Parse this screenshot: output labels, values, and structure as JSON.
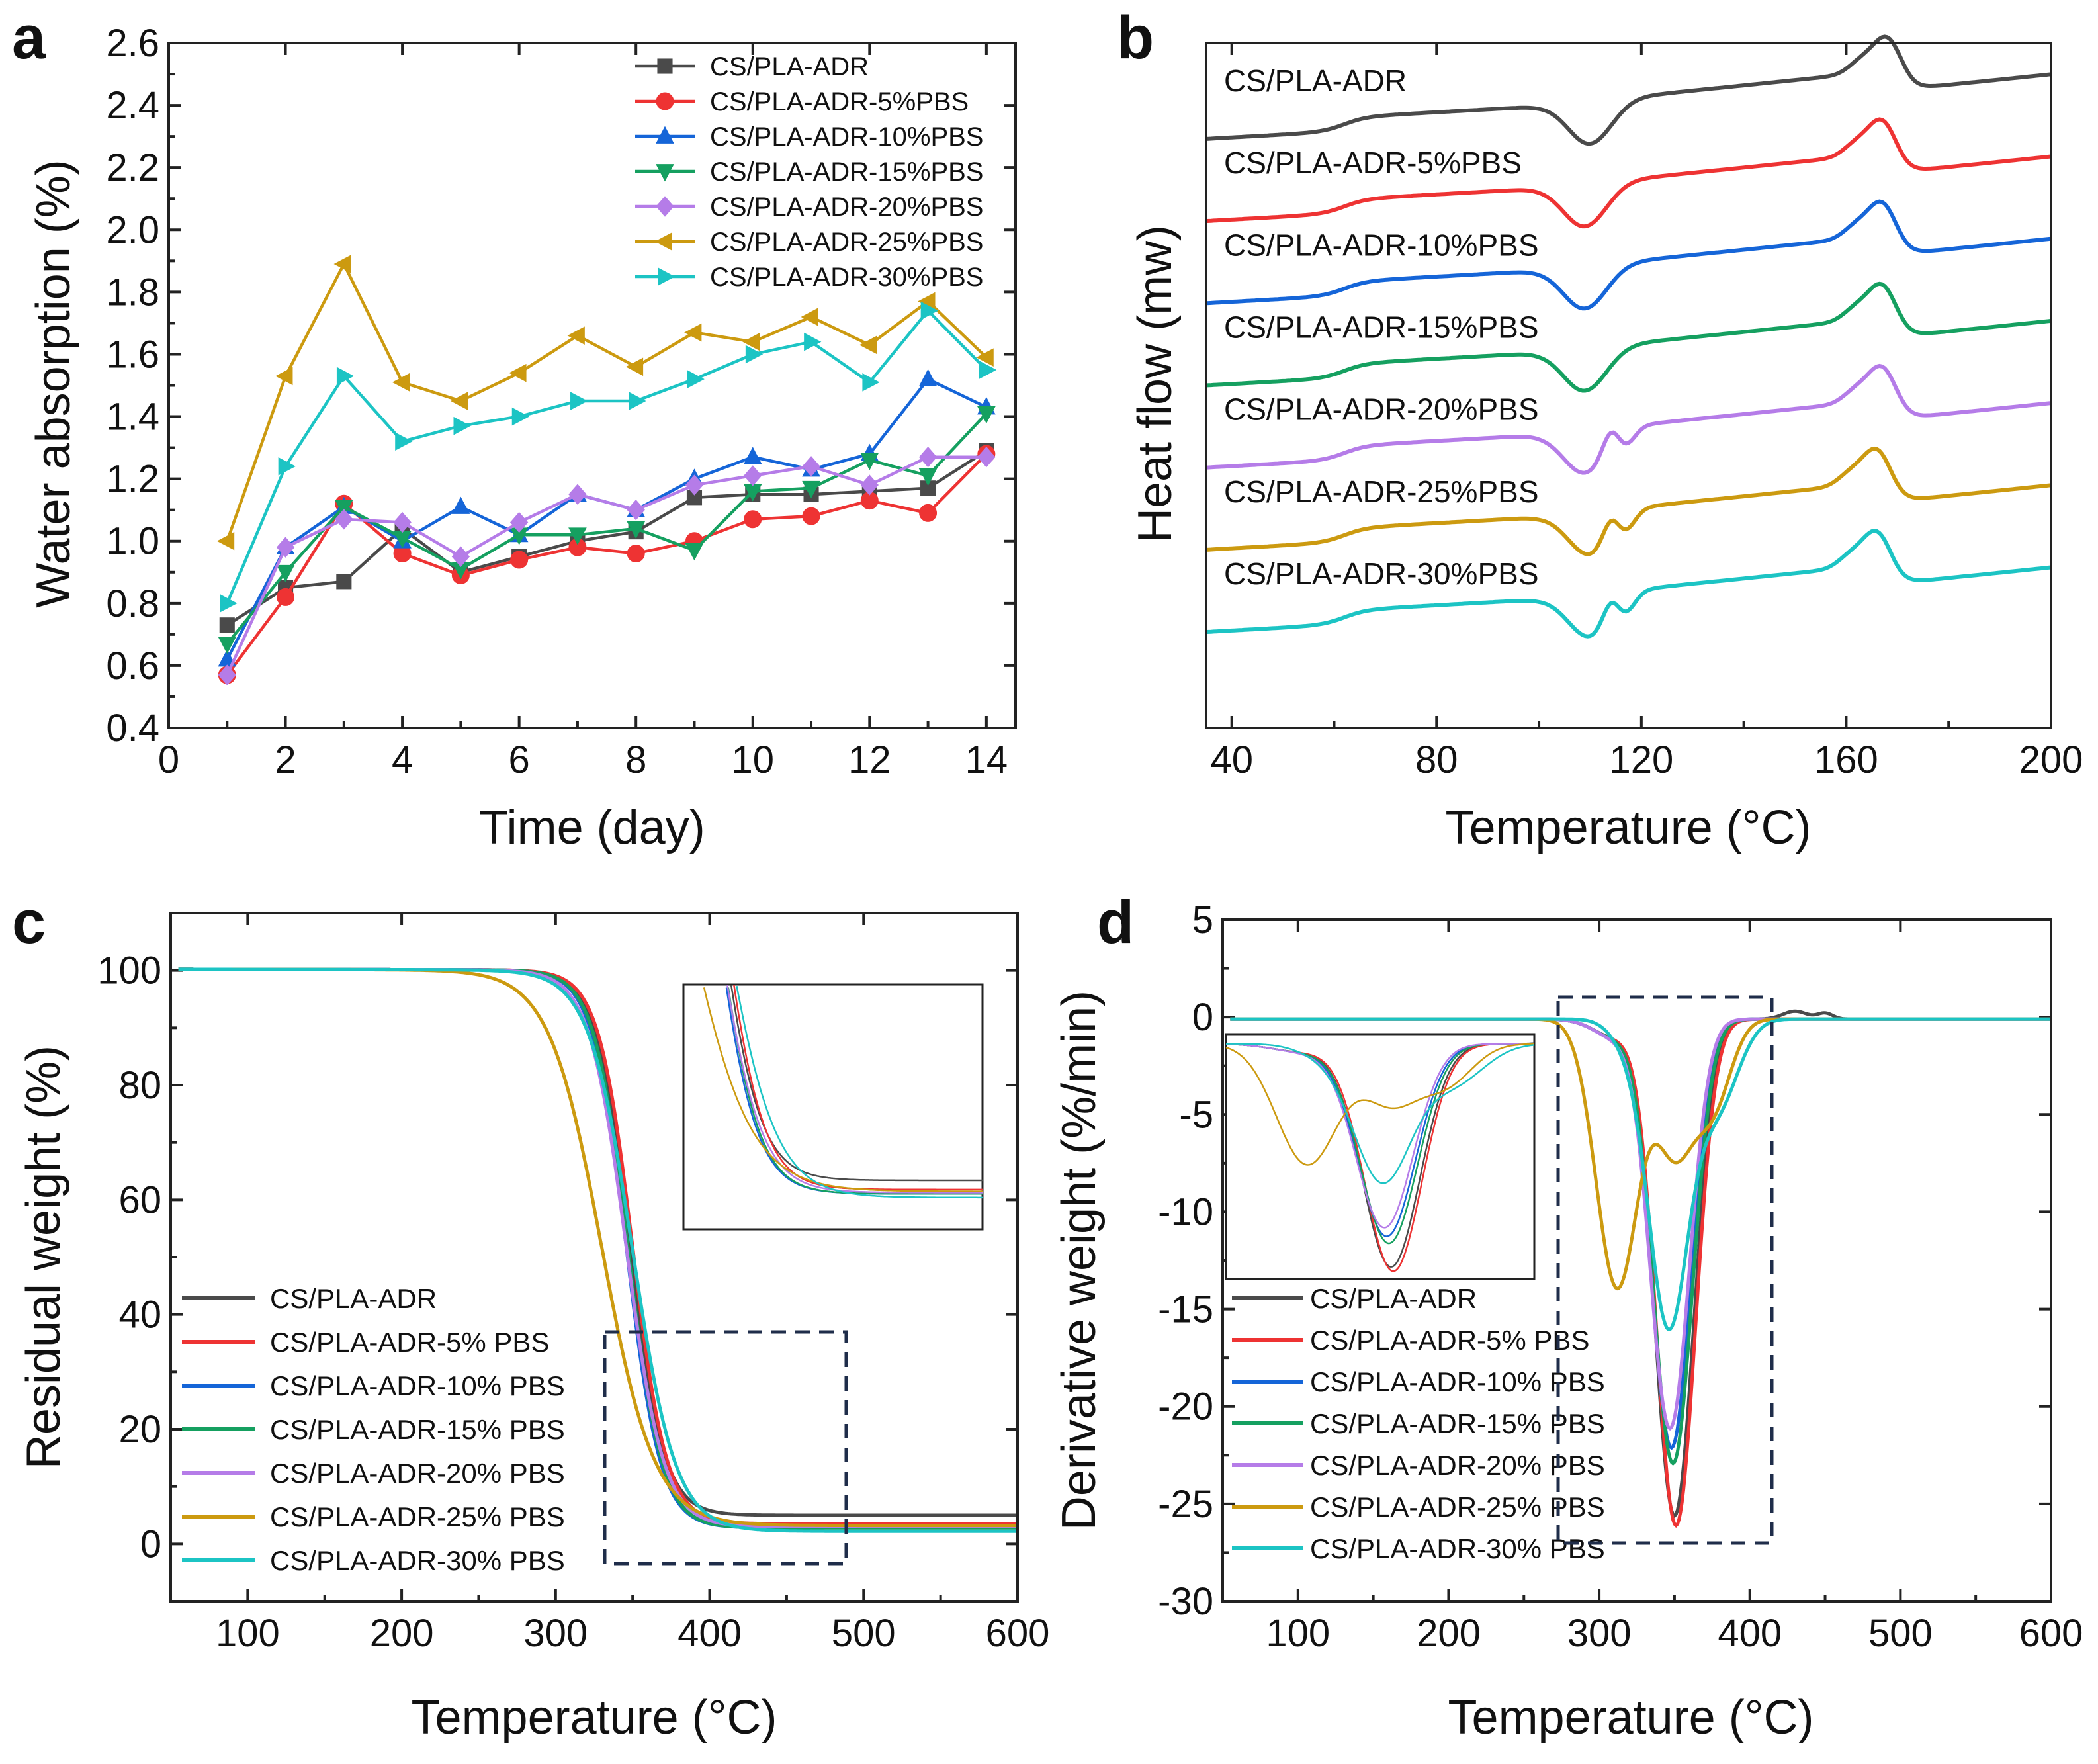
{
  "chart_data": [
    {
      "panel": "a",
      "type": "line",
      "xlabel": "Time (day)",
      "ylabel": "Water absorption (%)",
      "xlim": [
        0,
        14.5
      ],
      "ylim": [
        0.4,
        2.6
      ],
      "xticks": [
        0,
        2,
        4,
        6,
        8,
        10,
        12,
        14
      ],
      "yticks": [
        0.4,
        0.6,
        0.8,
        1.0,
        1.2,
        1.4,
        1.6,
        1.8,
        2.0,
        2.2,
        2.4,
        2.6
      ],
      "legend_position": "top-right",
      "x": [
        1,
        2,
        3,
        4,
        5,
        6,
        7,
        8,
        9,
        10,
        11,
        12,
        13,
        14
      ],
      "series": [
        {
          "name": "CS/PLA-ADR",
          "color": "#4a4a4a",
          "marker": "square",
          "values": [
            0.73,
            0.85,
            0.87,
            1.04,
            0.9,
            0.95,
            1.0,
            1.03,
            1.14,
            1.15,
            1.15,
            1.16,
            1.17,
            1.29
          ]
        },
        {
          "name": "CS/PLA-ADR-5%PBS",
          "color": "#ee3333",
          "marker": "circle",
          "values": [
            0.57,
            0.82,
            1.12,
            0.96,
            0.89,
            0.94,
            0.98,
            0.96,
            1.0,
            1.07,
            1.08,
            1.13,
            1.09,
            1.28
          ]
        },
        {
          "name": "CS/PLA-ADR-10%PBS",
          "color": "#1565d8",
          "marker": "triangle-up",
          "values": [
            0.62,
            0.98,
            1.11,
            1.0,
            1.11,
            1.02,
            1.15,
            1.1,
            1.2,
            1.27,
            1.23,
            1.28,
            1.52,
            1.43
          ]
        },
        {
          "name": "CS/PLA-ADR-15%PBS",
          "color": "#15a060",
          "marker": "triangle-down",
          "values": [
            0.67,
            0.9,
            1.11,
            1.01,
            0.91,
            1.02,
            1.02,
            1.04,
            0.97,
            1.16,
            1.17,
            1.26,
            1.21,
            1.41
          ]
        },
        {
          "name": "CS/PLA-ADR-20%PBS",
          "color": "#b57ce8",
          "marker": "diamond",
          "values": [
            0.57,
            0.98,
            1.07,
            1.06,
            0.95,
            1.06,
            1.15,
            1.1,
            1.18,
            1.21,
            1.24,
            1.18,
            1.27,
            1.27
          ]
        },
        {
          "name": "CS/PLA-ADR-25%PBS",
          "color": "#cc9a10",
          "marker": "triangle-left",
          "values": [
            1.0,
            1.53,
            1.89,
            1.51,
            1.45,
            1.54,
            1.66,
            1.56,
            1.67,
            1.64,
            1.72,
            1.63,
            1.77,
            1.59
          ]
        },
        {
          "name": "CS/PLA-ADR-30%PBS",
          "color": "#1cc4c4",
          "marker": "triangle-right",
          "values": [
            0.8,
            1.24,
            1.53,
            1.32,
            1.37,
            1.4,
            1.45,
            1.45,
            1.52,
            1.6,
            1.64,
            1.51,
            1.74,
            1.55
          ]
        }
      ]
    },
    {
      "panel": "b",
      "type": "line",
      "xlabel": "Temperature (°C)",
      "ylabel": "Heat flow (mw)",
      "xlim": [
        35,
        200
      ],
      "xticks": [
        40,
        80,
        120,
        160,
        200
      ],
      "y_axis": "offset traces, no y tick labels",
      "series": [
        {
          "name": "CS/PLA-ADR",
          "color": "#4a4a4a",
          "level": 0.86,
          "cold_cryst_peak_c": 110,
          "melt_peak_c": 168,
          "double_cold_cryst": false
        },
        {
          "name": "CS/PLA-ADR-5%PBS",
          "color": "#ee3333",
          "level": 0.74,
          "cold_cryst_peak_c": 109,
          "melt_peak_c": 167,
          "double_cold_cryst": false
        },
        {
          "name": "CS/PLA-ADR-10%PBS",
          "color": "#1565d8",
          "level": 0.62,
          "cold_cryst_peak_c": 109,
          "melt_peak_c": 167,
          "double_cold_cryst": false
        },
        {
          "name": "CS/PLA-ADR-15%PBS",
          "color": "#15a060",
          "level": 0.5,
          "cold_cryst_peak_c": 109,
          "melt_peak_c": 167,
          "double_cold_cryst": false
        },
        {
          "name": "CS/PLA-ADR-20%PBS",
          "color": "#b57ce8",
          "level": 0.38,
          "cold_cryst_peak_c": 109,
          "melt_peak_c": 167,
          "double_cold_cryst": true
        },
        {
          "name": "CS/PLA-ADR-25%PBS",
          "color": "#cc9a10",
          "level": 0.26,
          "cold_cryst_peak_c": 110,
          "melt_peak_c": 166,
          "double_cold_cryst": true
        },
        {
          "name": "CS/PLA-ADR-30%PBS",
          "color": "#1cc4c4",
          "level": 0.14,
          "cold_cryst_peak_c": 110,
          "melt_peak_c": 166,
          "double_cold_cryst": true
        }
      ]
    },
    {
      "panel": "c",
      "type": "line",
      "xlabel": "Temperature (°C)",
      "ylabel": "Residual weight (%)",
      "xlim": [
        50,
        600
      ],
      "ylim": [
        -10,
        110
      ],
      "xticks": [
        100,
        200,
        300,
        400,
        500,
        600
      ],
      "yticks": [
        0,
        20,
        40,
        60,
        80,
        100
      ],
      "legend_position": "bottom-left",
      "inset": "zoom of dashed region (about 330-490 °C, -3-37 %)",
      "series": [
        {
          "name": "CS/PLA-ADR",
          "color": "#4a4a4a",
          "t_half": 348,
          "width": 11,
          "residue": 5.0
        },
        {
          "name": "CS/PLA-ADR-5% PBS",
          "color": "#ee3333",
          "t_half": 350,
          "width": 11,
          "residue": 3.5
        },
        {
          "name": "CS/PLA-ADR-10% PBS",
          "color": "#1565d8",
          "t_half": 346,
          "width": 11,
          "residue": 2.8
        },
        {
          "name": "CS/PLA-ADR-15% PBS",
          "color": "#15a060",
          "t_half": 347,
          "width": 11,
          "residue": 2.8
        },
        {
          "name": "CS/PLA-ADR-20% PBS",
          "color": "#b57ce8",
          "t_half": 346,
          "width": 12,
          "residue": 3.0
        },
        {
          "name": "CS/PLA-ADR-25% PBS",
          "color": "#cc9a10",
          "t_half": 330,
          "width": 17,
          "residue": 3.2
        },
        {
          "name": "CS/PLA-ADR-30% PBS",
          "color": "#1cc4c4",
          "t_half": 350,
          "width": 14,
          "residue": 2.2
        }
      ]
    },
    {
      "panel": "d",
      "type": "line",
      "xlabel": "Temperature (°C)",
      "ylabel": "Derivative weight (%/min)",
      "xlim": [
        50,
        600
      ],
      "ylim": [
        -30,
        5
      ],
      "xticks": [
        100,
        200,
        300,
        400,
        500,
        600
      ],
      "yticks": [
        -30,
        -25,
        -20,
        -15,
        -10,
        -5,
        0,
        5
      ],
      "legend_position": "bottom-left",
      "inset": "zoom of dashed region (about 275-415 °C, -27-1 %/min)",
      "series": [
        {
          "name": "CS/PLA-ADR",
          "color": "#4a4a4a",
          "peak_c": 350,
          "peak_value": -25.5
        },
        {
          "name": "CS/PLA-ADR-5% PBS",
          "color": "#ee3333",
          "peak_c": 351,
          "peak_value": -26.0
        },
        {
          "name": "CS/PLA-ADR-10% PBS",
          "color": "#1565d8",
          "peak_c": 348,
          "peak_value": -22.0
        },
        {
          "name": "CS/PLA-ADR-15% PBS",
          "color": "#15a060",
          "peak_c": 349,
          "peak_value": -22.8
        },
        {
          "name": "CS/PLA-ADR-20% PBS",
          "color": "#b57ce8",
          "peak_c": 347,
          "peak_value": -21.0
        },
        {
          "name": "CS/PLA-ADR-25% PBS",
          "color": "#cc9a10",
          "peak_c": 312,
          "peak_value": -14.5
        },
        {
          "name": "CS/PLA-ADR-30% PBS",
          "color": "#1cc4c4",
          "peak_c": 346,
          "peak_value": -17.0
        }
      ]
    }
  ],
  "panel_labels": [
    "a",
    "b",
    "c",
    "d"
  ]
}
